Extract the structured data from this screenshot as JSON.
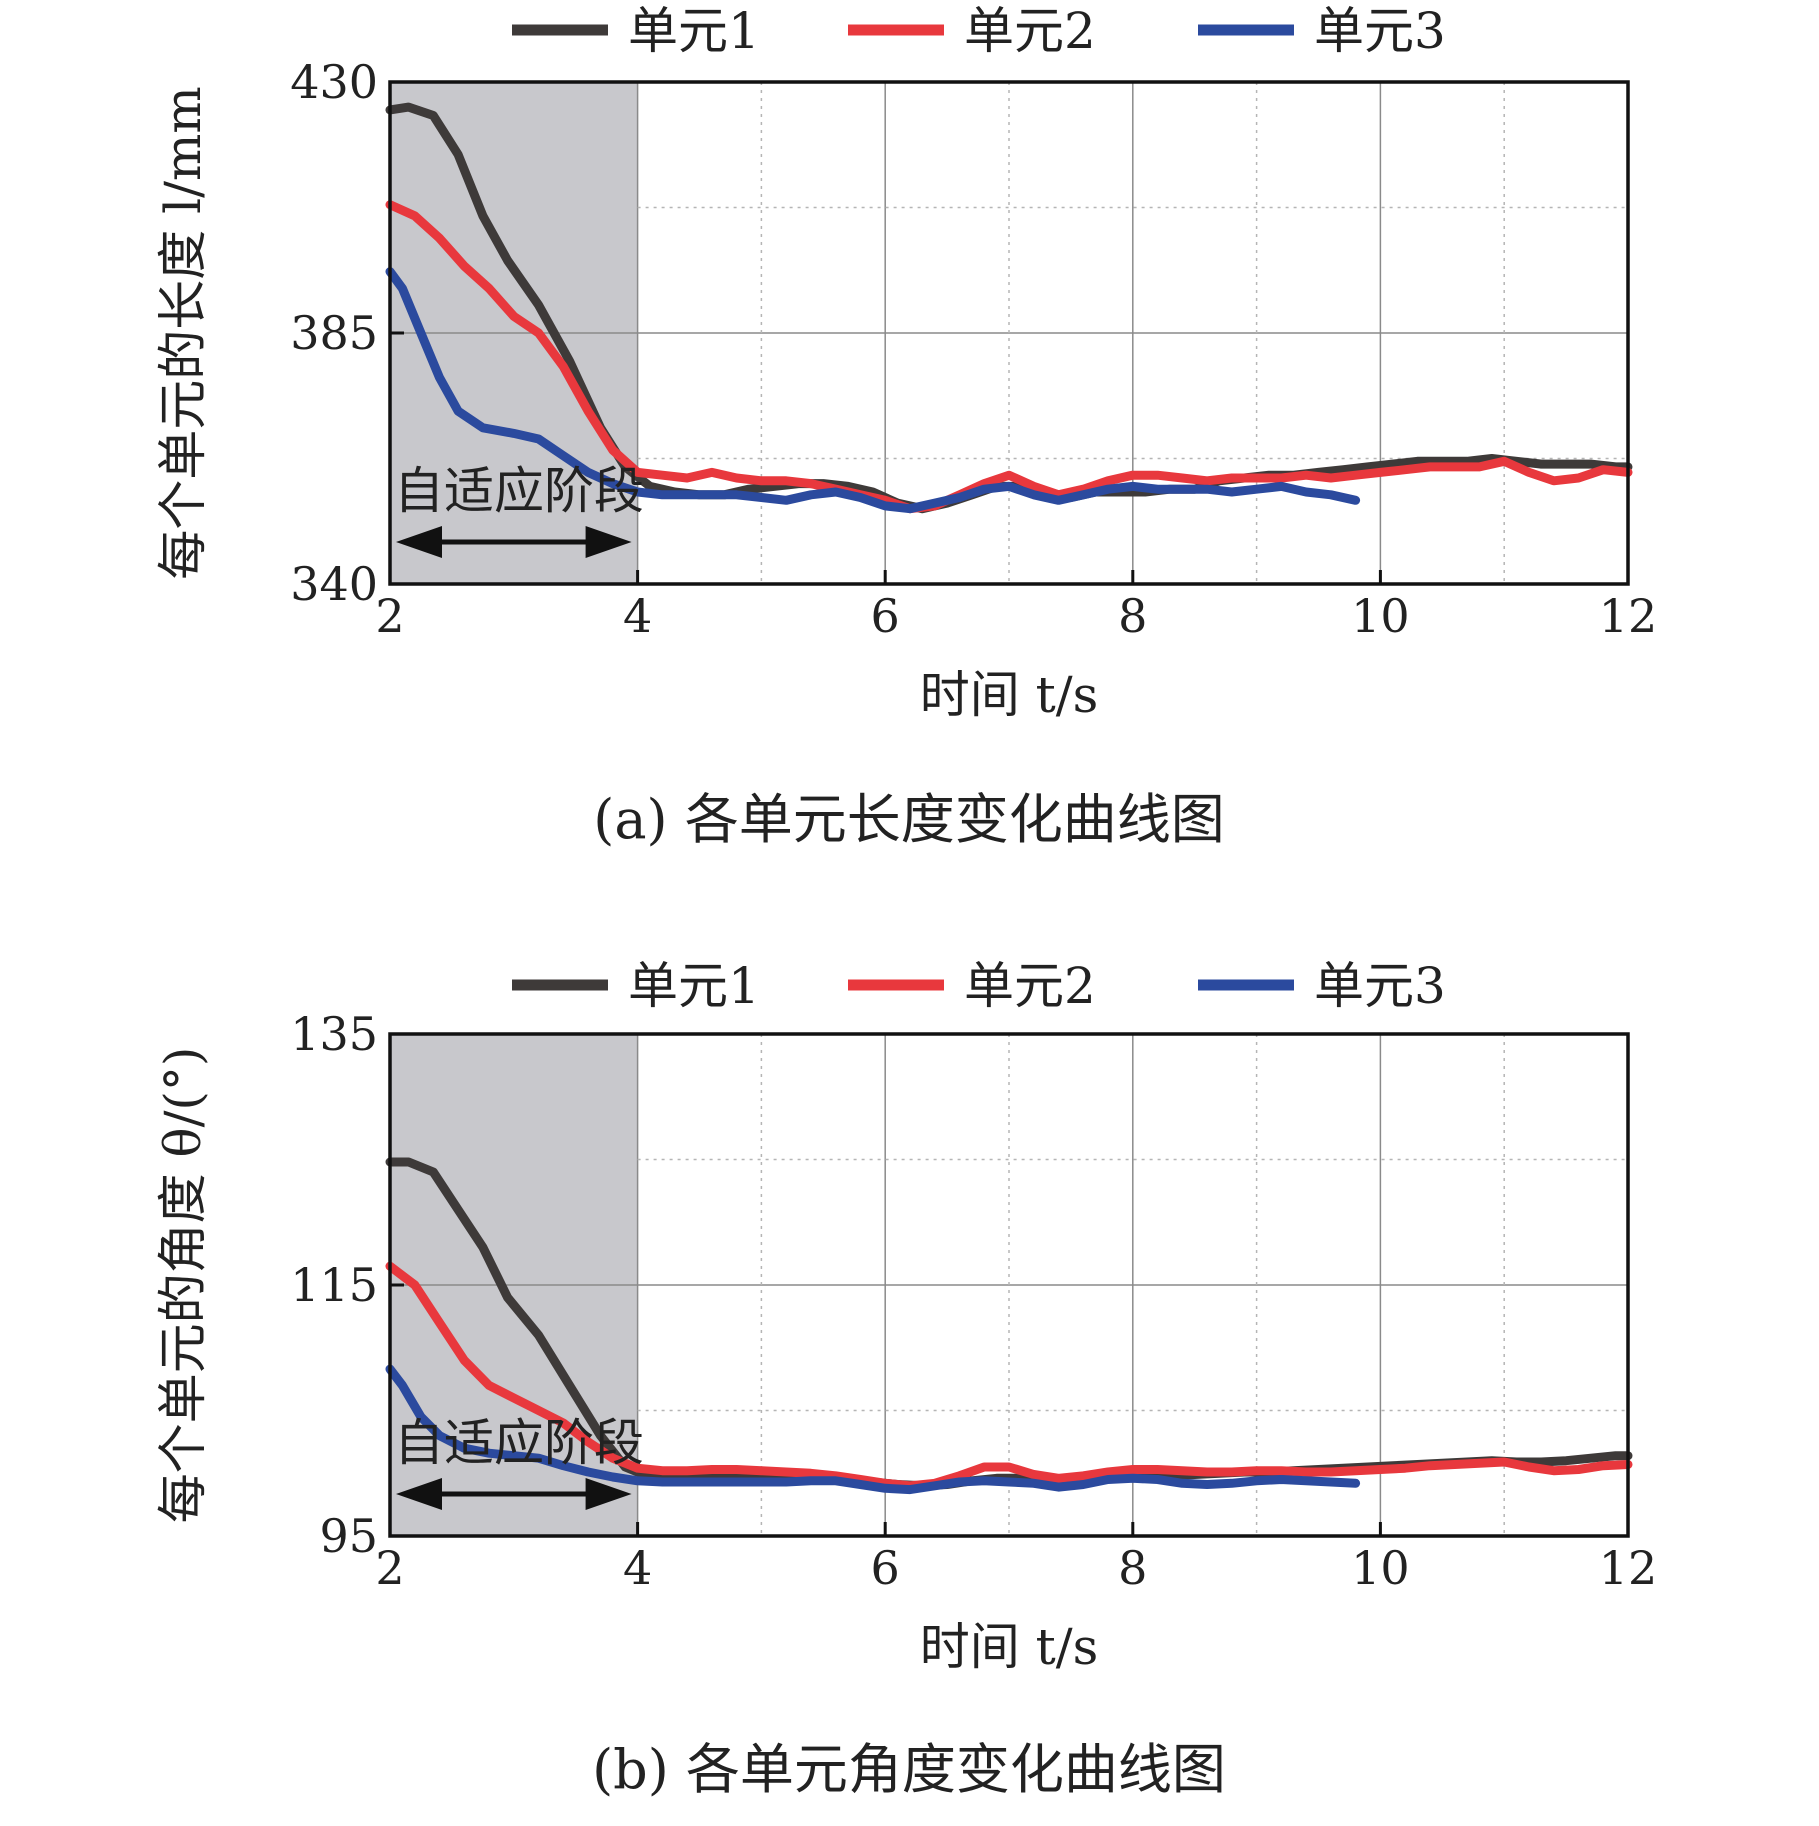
{
  "chart_data": [
    {
      "type": "line",
      "caption": "(a) 各单元长度变化曲线图",
      "xlabel": "时间 t/s",
      "ylabel": "每个单元的长度 l/mm",
      "xlim": [
        2,
        12
      ],
      "ylim": [
        340,
        430
      ],
      "xticks": [
        "2",
        "4",
        "6",
        "8",
        "10",
        "12"
      ],
      "yticks": [
        "340",
        "385",
        "430"
      ],
      "grid": true,
      "legend_position": "top",
      "shaded_region": {
        "x": [
          2,
          4
        ],
        "label": "自适应阶段",
        "color": "#c8c8cc"
      },
      "series": [
        {
          "name": "单元1",
          "color": "#3e3a39",
          "x": [
            2.0,
            2.15,
            2.35,
            2.55,
            2.75,
            2.95,
            3.2,
            3.45,
            3.7,
            3.9,
            4.1,
            4.3,
            4.5,
            4.7,
            4.9,
            5.1,
            5.3,
            5.5,
            5.7,
            5.9,
            6.1,
            6.3,
            6.5,
            6.7,
            6.9,
            7.1,
            7.3,
            7.5,
            7.7,
            7.9,
            8.1,
            8.3,
            8.5,
            8.7,
            8.9,
            9.1,
            9.3,
            9.5,
            9.7,
            9.9,
            10.1,
            10.3,
            10.5,
            10.7,
            10.9,
            11.1,
            11.3,
            11.5,
            11.7,
            11.9,
            12.0
          ],
          "y": [
            425,
            425.5,
            424,
            417,
            406,
            398,
            390,
            380,
            368,
            361,
            357.5,
            356.5,
            356,
            356,
            357,
            357.5,
            358,
            358,
            357.5,
            356.5,
            354.5,
            353.5,
            354.5,
            356,
            357.5,
            357.5,
            356.5,
            355.5,
            356.5,
            356.5,
            356.5,
            357,
            357,
            358.5,
            359,
            359.5,
            359.5,
            360,
            360.5,
            361,
            361.5,
            362,
            362,
            362,
            362.5,
            362,
            361.5,
            361.5,
            361.5,
            361,
            361
          ]
        },
        {
          "name": "单元2",
          "color": "#e8383d",
          "x": [
            2.0,
            2.2,
            2.4,
            2.6,
            2.8,
            3.0,
            3.2,
            3.4,
            3.6,
            3.8,
            4.0,
            4.2,
            4.4,
            4.6,
            4.8,
            5.0,
            5.2,
            5.4,
            5.6,
            5.8,
            6.0,
            6.2,
            6.4,
            6.6,
            6.8,
            7.0,
            7.2,
            7.4,
            7.6,
            7.8,
            8.0,
            8.2,
            8.4,
            8.6,
            8.8,
            9.0,
            9.2,
            9.4,
            9.6,
            9.8,
            10.0,
            10.2,
            10.4,
            10.6,
            10.8,
            11.0,
            11.2,
            11.4,
            11.6,
            11.8,
            12.0
          ],
          "y": [
            408,
            406,
            402,
            397,
            393,
            388,
            385,
            379,
            371,
            364,
            360,
            359.5,
            359,
            360,
            359,
            358.5,
            358.5,
            358,
            357,
            356,
            355,
            353.5,
            354,
            356,
            358,
            359.5,
            357.5,
            356,
            357,
            358.5,
            359.5,
            359.5,
            359,
            358.5,
            359,
            359,
            359,
            359.5,
            359,
            359.5,
            360,
            360.5,
            361,
            361,
            361,
            362,
            360,
            358.5,
            359,
            360.5,
            360
          ]
        },
        {
          "name": "单元3",
          "color": "#2b4a9e",
          "x": [
            2.0,
            2.1,
            2.25,
            2.4,
            2.55,
            2.75,
            3.0,
            3.2,
            3.4,
            3.6,
            3.8,
            4.0,
            4.2,
            4.4,
            4.6,
            4.8,
            5.0,
            5.2,
            5.4,
            5.6,
            5.8,
            6.0,
            6.2,
            6.4,
            6.6,
            6.8,
            7.0,
            7.2,
            7.4,
            7.6,
            7.8,
            8.0,
            8.2,
            8.4,
            8.6,
            8.8,
            9.0,
            9.2,
            9.4,
            9.6,
            9.8
          ],
          "y": [
            396,
            393,
            385,
            377,
            371,
            368,
            367,
            366,
            363,
            360,
            358,
            356.5,
            356,
            356,
            356,
            356,
            355.5,
            355,
            356,
            356.5,
            355.5,
            354,
            353.5,
            354.5,
            355.5,
            357,
            357.5,
            356,
            355,
            356,
            357,
            357.5,
            357,
            357,
            357,
            356.5,
            357,
            357.5,
            356.5,
            356,
            355
          ]
        }
      ]
    },
    {
      "type": "line",
      "caption": "(b) 各单元角度变化曲线图",
      "xlabel": "时间 t/s",
      "ylabel": "每个单元的角度 θ/(°)",
      "xlim": [
        2,
        12
      ],
      "ylim": [
        95,
        135
      ],
      "xticks": [
        "2",
        "4",
        "6",
        "8",
        "10",
        "12"
      ],
      "yticks": [
        "95",
        "115",
        "135"
      ],
      "grid": true,
      "legend_position": "top",
      "shaded_region": {
        "x": [
          2,
          4
        ],
        "label": "自适应阶段",
        "color": "#c8c8cc"
      },
      "series": [
        {
          "name": "单元1",
          "color": "#3e3a39",
          "x": [
            2.0,
            2.15,
            2.35,
            2.55,
            2.75,
            2.95,
            3.2,
            3.45,
            3.7,
            3.9,
            4.1,
            4.3,
            4.5,
            4.7,
            4.9,
            5.1,
            5.3,
            5.5,
            5.7,
            5.9,
            6.1,
            6.3,
            6.5,
            6.7,
            6.9,
            7.1,
            7.3,
            7.5,
            7.7,
            7.9,
            8.1,
            8.3,
            8.5,
            8.7,
            8.9,
            9.1,
            9.3,
            9.5,
            9.7,
            9.9,
            10.1,
            10.3,
            10.5,
            10.7,
            10.9,
            11.1,
            11.3,
            11.5,
            11.7,
            11.9,
            12.0
          ],
          "y": [
            124.8,
            124.8,
            124,
            121,
            118,
            114,
            111,
            107,
            103,
            100.5,
            99.7,
            99.6,
            99.6,
            99.7,
            99.6,
            99.5,
            99.5,
            99.6,
            99.5,
            99.3,
            99.1,
            99.0,
            99.1,
            99.4,
            99.6,
            99.6,
            99.4,
            99.3,
            99.5,
            99.6,
            99.7,
            99.8,
            99.9,
            100.0,
            100.1,
            100.1,
            100.2,
            100.3,
            100.4,
            100.5,
            100.6,
            100.7,
            100.8,
            100.9,
            101.0,
            100.9,
            100.9,
            101.0,
            101.2,
            101.4,
            101.4
          ]
        },
        {
          "name": "单元2",
          "color": "#e8383d",
          "x": [
            2.0,
            2.2,
            2.4,
            2.6,
            2.8,
            3.0,
            3.2,
            3.4,
            3.6,
            3.8,
            4.0,
            4.2,
            4.4,
            4.6,
            4.8,
            5.0,
            5.2,
            5.4,
            5.6,
            5.8,
            6.0,
            6.2,
            6.4,
            6.6,
            6.8,
            7.0,
            7.2,
            7.4,
            7.6,
            7.8,
            8.0,
            8.2,
            8.4,
            8.6,
            8.8,
            9.0,
            9.2,
            9.4,
            9.6,
            9.8,
            10.0,
            10.2,
            10.4,
            10.6,
            10.8,
            11.0,
            11.2,
            11.4,
            11.6,
            11.8,
            12.0
          ],
          "y": [
            116.5,
            115,
            112,
            109,
            107,
            106,
            105,
            104,
            102.5,
            101.2,
            100.4,
            100.2,
            100.2,
            100.3,
            100.3,
            100.2,
            100.1,
            100.0,
            99.8,
            99.5,
            99.2,
            99.0,
            99.2,
            99.8,
            100.5,
            100.5,
            99.9,
            99.6,
            99.8,
            100.1,
            100.3,
            100.3,
            100.2,
            100.1,
            100.1,
            100.2,
            100.2,
            100.1,
            100.1,
            100.2,
            100.3,
            100.4,
            100.6,
            100.7,
            100.8,
            100.9,
            100.5,
            100.2,
            100.3,
            100.6,
            100.7
          ]
        },
        {
          "name": "单元3",
          "color": "#2b4a9e",
          "x": [
            2.0,
            2.1,
            2.25,
            2.4,
            2.6,
            2.8,
            3.0,
            3.2,
            3.4,
            3.6,
            3.8,
            4.0,
            4.2,
            4.4,
            4.6,
            4.8,
            5.0,
            5.2,
            5.4,
            5.6,
            5.8,
            6.0,
            6.2,
            6.4,
            6.6,
            6.8,
            7.0,
            7.2,
            7.4,
            7.6,
            7.8,
            8.0,
            8.2,
            8.4,
            8.6,
            8.8,
            9.0,
            9.2,
            9.4,
            9.6,
            9.8
          ],
          "y": [
            108.3,
            107,
            104.5,
            103,
            102,
            101.6,
            101.4,
            101.2,
            100.6,
            100.1,
            99.7,
            99.4,
            99.3,
            99.3,
            99.3,
            99.3,
            99.3,
            99.3,
            99.4,
            99.4,
            99.1,
            98.8,
            98.7,
            99.0,
            99.3,
            99.4,
            99.3,
            99.2,
            98.9,
            99.1,
            99.5,
            99.6,
            99.5,
            99.2,
            99.1,
            99.2,
            99.4,
            99.5,
            99.4,
            99.3,
            99.2
          ]
        }
      ]
    }
  ]
}
